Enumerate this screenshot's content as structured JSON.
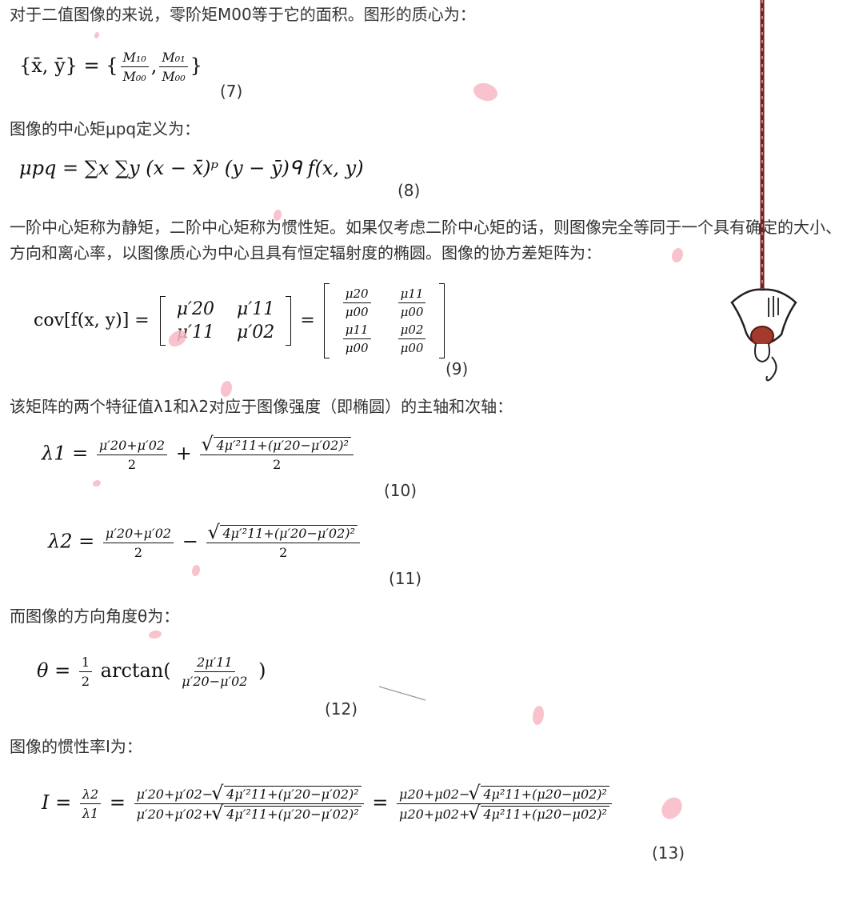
{
  "paragraphs": {
    "p1": "对于二值图像的来说，零阶矩M00等于它的面积。图形的质心为：",
    "p2": "图像的中心矩μpq定义为：",
    "p3": "一阶中心矩称为静矩，二阶中心矩称为惯性矩。如果仅考虑二阶中心矩的话，则图像完全等同于一个具有确定的大小、方向和离心率，以图像质心为中心且具有恒定辐射度的椭圆。图像的协方差矩阵为：",
    "p4": "该矩阵的两个特征值λ1和λ2对应于图像强度（即椭圆）的主轴和次轴：",
    "p5": "而图像的方向角度θ为：",
    "p6": "图像的惯性率I为："
  },
  "equation_numbers": [
    "(7)",
    "(8)",
    "(9)",
    "(10)",
    "(11)",
    "(12)",
    "(13)"
  ],
  "math": {
    "centroid_lhs": "{x̄, ȳ} = {",
    "m10": "M₁₀",
    "m01": "M₀₁",
    "m00": "M₀₀",
    "centroid_close": "}",
    "central_moment": "μpq = ∑x ∑y (x − x̄)ᵖ (y − ȳ)ᑫ f(x, y)",
    "cov_lhs": "cov[f(x, y)] =",
    "cov_m": [
      "μ′20",
      "μ′11",
      "μ′11",
      "μ′02"
    ],
    "cov_n": [
      "μ20",
      "μ11",
      "μ11",
      "μ02"
    ],
    "mu00": "μ00",
    "lambda1": "λ1 =",
    "lambda2": "λ2 =",
    "mean_num": "μ′20+μ′02",
    "two": "2",
    "plus": "+",
    "minus": "−",
    "root_prime": "4μ′²11+(μ′20−μ′02)²",
    "theta_lhs": "θ =",
    "half_num": "1",
    "arctan": "arctan(",
    "theta_num": "2μ′11",
    "theta_den": "μ′20−μ′02",
    "close_paren": ")",
    "inertia_lhs": "I =",
    "l2": "λ2",
    "l1": "λ1",
    "inertia_num1": "μ′20+μ′02−",
    "inertia_den1": "μ′20+μ′02+",
    "inertia_num2": "μ20+μ02−",
    "inertia_den2": "μ20+μ02+",
    "root_plain": "4μ²11+(μ20−μ02)²",
    "equals": "="
  }
}
